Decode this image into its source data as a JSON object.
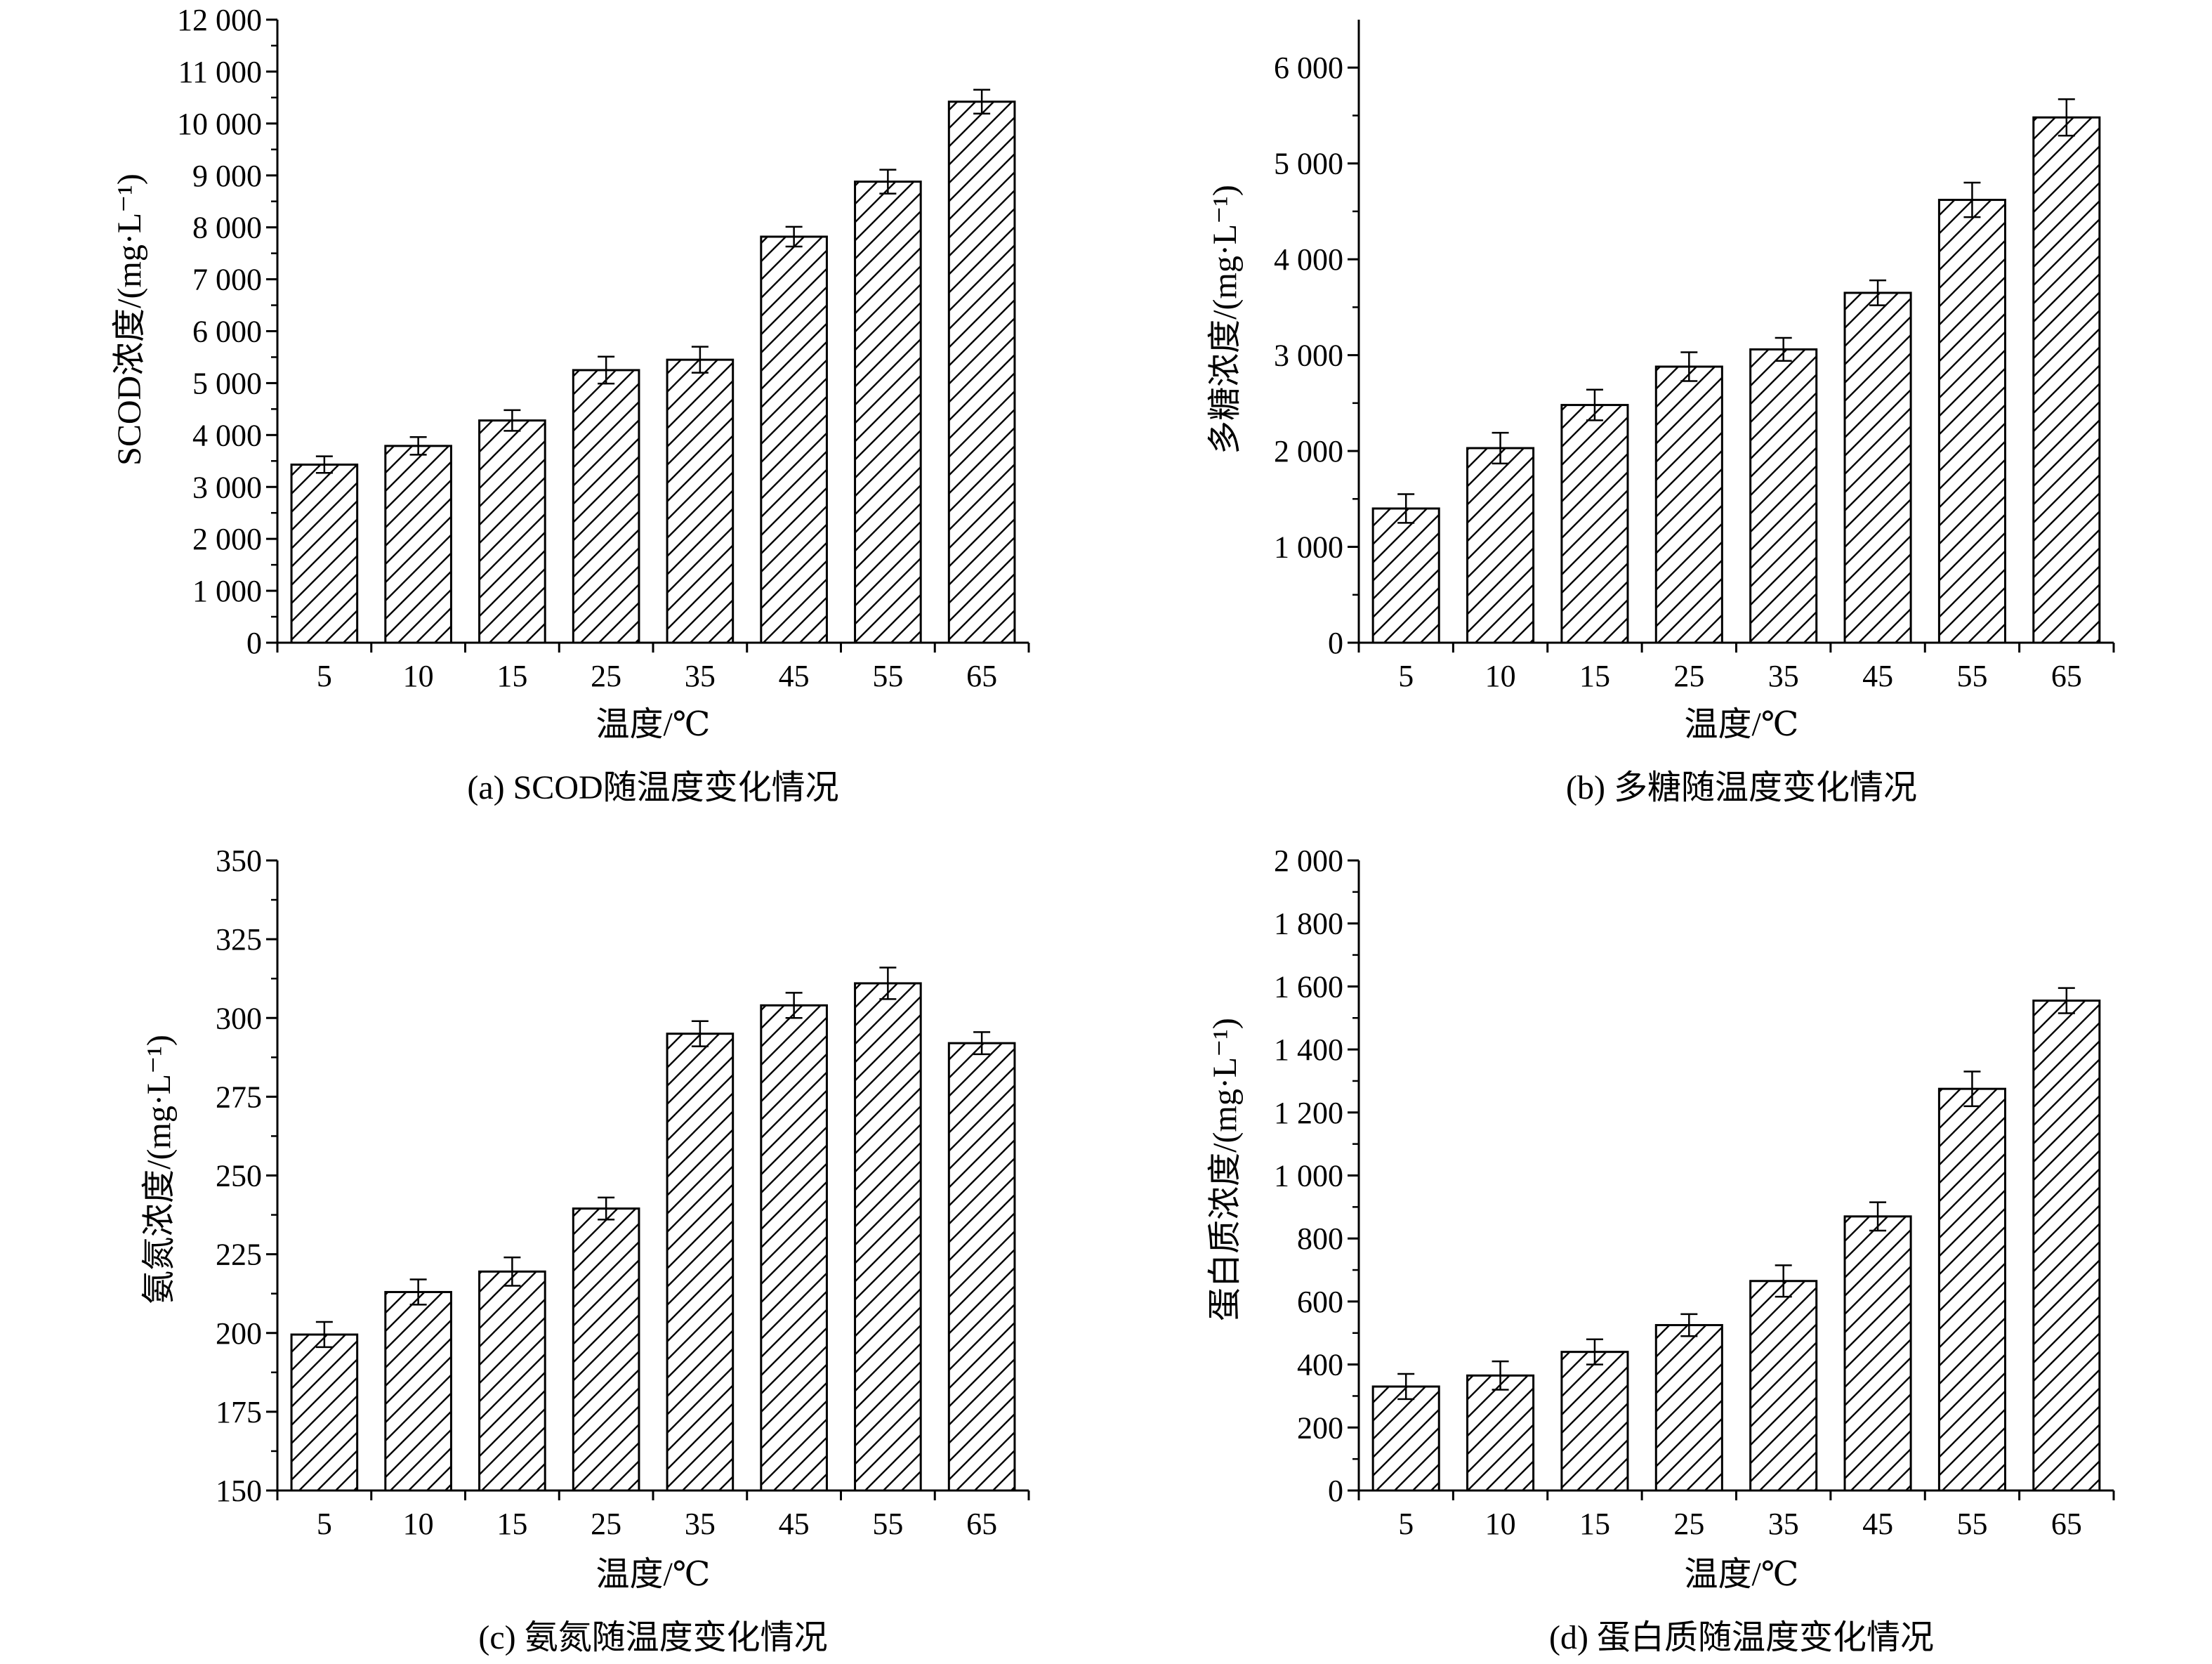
{
  "chart_data": [
    {
      "type": "bar",
      "caption": "(a) SCOD随温度变化情况",
      "xlabel": "温度/℃",
      "ylabel": "SCOD浓度/(mg·L⁻¹)",
      "categories": [
        "5",
        "10",
        "15",
        "25",
        "35",
        "45",
        "55",
        "65"
      ],
      "values": [
        3430,
        3790,
        4280,
        5250,
        5450,
        7820,
        8880,
        10420
      ],
      "errors": [
        160,
        170,
        200,
        260,
        250,
        190,
        230,
        230
      ],
      "ylim": [
        0,
        12000
      ],
      "yticks": [
        0,
        1000,
        2000,
        3000,
        4000,
        5000,
        6000,
        7000,
        8000,
        9000,
        10000,
        11000,
        12000
      ],
      "yticklabels": [
        "0",
        "1 000",
        "2 000",
        "3 000",
        "4 000",
        "5 000",
        "6 000",
        "7 000",
        "8 000",
        "9 000",
        "10 000",
        "11 000",
        "12 000"
      ],
      "hatch": "diagonal"
    },
    {
      "type": "bar",
      "caption": "(b) 多糖随温度变化情况",
      "xlabel": "温度/℃",
      "ylabel": "多糖浓度/(mg·L⁻¹)",
      "categories": [
        "5",
        "10",
        "15",
        "25",
        "35",
        "45",
        "55",
        "65"
      ],
      "values": [
        1400,
        2030,
        2480,
        2880,
        3060,
        3650,
        4620,
        5480
      ],
      "errors": [
        150,
        160,
        160,
        150,
        120,
        130,
        180,
        190
      ],
      "ylim": [
        0,
        6500
      ],
      "yticks": [
        0,
        1000,
        2000,
        3000,
        4000,
        5000,
        6000
      ],
      "yticklabels": [
        "0",
        "1 000",
        "2 000",
        "3 000",
        "4 000",
        "5 000",
        "6 000"
      ],
      "hatch": "diagonal"
    },
    {
      "type": "bar",
      "caption": "(c) 氨氮随温度变化情况",
      "xlabel": "温度/℃",
      "ylabel": "氨氮浓度/(mg·L⁻¹)",
      "categories": [
        "5",
        "10",
        "15",
        "25",
        "35",
        "45",
        "55",
        "65"
      ],
      "values": [
        199.5,
        213,
        219.5,
        239.5,
        295,
        304,
        311,
        292
      ],
      "errors": [
        4,
        4,
        4.5,
        3.5,
        4,
        4,
        5,
        3.5
      ],
      "ylim": [
        150,
        350
      ],
      "yticks": [
        150,
        175,
        200,
        225,
        250,
        275,
        300,
        325,
        350
      ],
      "yticklabels": [
        "150",
        "175",
        "200",
        "225",
        "250",
        "275",
        "300",
        "325",
        "350"
      ],
      "hatch": "diagonal"
    },
    {
      "type": "bar",
      "caption": "(d) 蛋白质随温度变化情况",
      "xlabel": "温度/℃",
      "ylabel": "蛋白质浓度/(mg·L⁻¹)",
      "categories": [
        "5",
        "10",
        "15",
        "25",
        "35",
        "45",
        "55",
        "65"
      ],
      "values": [
        330,
        365,
        440,
        525,
        665,
        870,
        1275,
        1555
      ],
      "errors": [
        40,
        45,
        40,
        35,
        50,
        45,
        55,
        40
      ],
      "ylim": [
        0,
        2000
      ],
      "yticks": [
        0,
        200,
        400,
        600,
        800,
        1000,
        1200,
        1400,
        1600,
        1800,
        2000
      ],
      "yticklabels": [
        "0",
        "200",
        "400",
        "600",
        "800",
        "1 000",
        "1 200",
        "1 400",
        "1 600",
        "1 800",
        "2 000"
      ],
      "hatch": "diagonal"
    }
  ]
}
